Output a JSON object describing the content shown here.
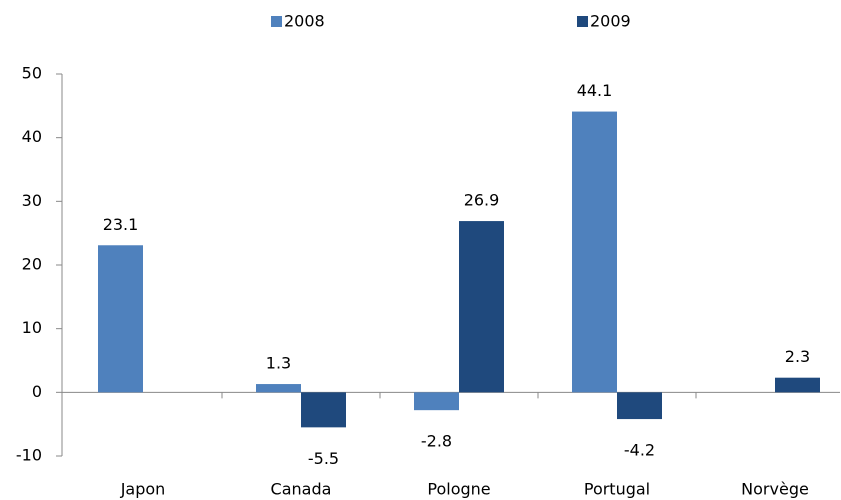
{
  "chart_data": {
    "type": "bar",
    "categories": [
      "Japon",
      "Canada",
      "Pologne",
      "Portugal",
      "Norvège"
    ],
    "series": [
      {
        "name": "2008",
        "color": "#4f81bd",
        "values": [
          23.1,
          1.3,
          -2.8,
          44.1,
          null
        ]
      },
      {
        "name": "2009",
        "color": "#1f497d",
        "values": [
          null,
          -5.5,
          26.9,
          -4.2,
          2.3
        ]
      }
    ],
    "ylim": [
      -10,
      50
    ],
    "yticks": [
      -10,
      0,
      10,
      20,
      30,
      40,
      50
    ],
    "grid": false,
    "legend": "top"
  }
}
